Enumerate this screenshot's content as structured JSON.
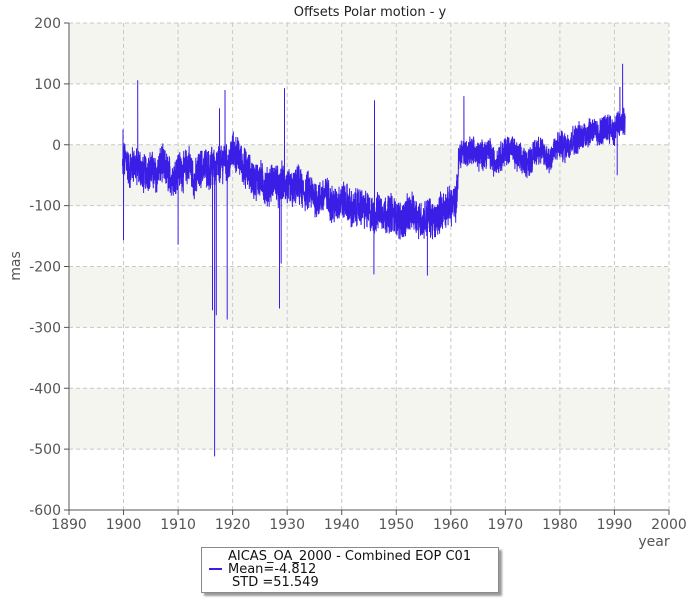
{
  "chart_data": {
    "type": "line",
    "title": "Offsets Polar motion - y",
    "xlabel": "year",
    "ylabel": "mas",
    "xlim": [
      1890,
      2000
    ],
    "ylim": [
      -600,
      200
    ],
    "xticks": [
      1890,
      1900,
      1910,
      1920,
      1930,
      1940,
      1950,
      1960,
      1970,
      1980,
      1990,
      2000
    ],
    "yticks": [
      -600,
      -500,
      -400,
      -300,
      -200,
      -100,
      0,
      100,
      200
    ],
    "grid": true,
    "legend_position": "bottom-center",
    "colors": {
      "series": "#3b1ee6",
      "band": "#f5f5f0",
      "grid": "#c8c8c8"
    },
    "series": [
      {
        "name": "AICAS_OA_2000 - Combined EOP C01",
        "x": [
          1899.8,
          1900,
          1900.5,
          1901,
          1901.5,
          1902,
          1902.5,
          1903,
          1903.5,
          1904,
          1905,
          1906,
          1907,
          1908,
          1909,
          1910,
          1911,
          1912,
          1913,
          1914,
          1915,
          1916,
          1916.4,
          1916.8,
          1917.2,
          1918,
          1918.6,
          1919,
          1920,
          1921,
          1922,
          1923,
          1924,
          1925,
          1926,
          1927,
          1928,
          1928.5,
          1929,
          1930,
          1931,
          1932,
          1933,
          1934,
          1935,
          1936,
          1937,
          1938,
          1939,
          1940,
          1941,
          1942,
          1943,
          1944,
          1945,
          1946,
          1947,
          1948,
          1949,
          1950,
          1951,
          1952,
          1953,
          1954,
          1955,
          1956,
          1957,
          1958,
          1959,
          1960,
          1961,
          1961.5,
          1962,
          1963,
          1964,
          1965,
          1966,
          1967,
          1968,
          1969,
          1970,
          1971,
          1972,
          1973,
          1974,
          1975,
          1976,
          1977,
          1978,
          1979,
          1980,
          1981,
          1982,
          1983,
          1984,
          1985,
          1986,
          1987,
          1988,
          1989,
          1990,
          1990.5,
          1991,
          1991.5,
          1992
        ],
        "mean": [
          -40,
          -30,
          -20,
          -45,
          -35,
          -30,
          -40,
          -35,
          -50,
          -45,
          -40,
          -50,
          -30,
          -45,
          -55,
          -40,
          -45,
          -30,
          -60,
          -40,
          -35,
          -45,
          -20,
          -50,
          -30,
          -35,
          -15,
          -40,
          -10,
          -20,
          -35,
          -45,
          -60,
          -55,
          -70,
          -65,
          -55,
          -80,
          -60,
          -70,
          -75,
          -65,
          -80,
          -75,
          -85,
          -90,
          -80,
          -95,
          -100,
          -90,
          -95,
          -110,
          -100,
          -105,
          -110,
          -120,
          -105,
          -115,
          -110,
          -120,
          -125,
          -115,
          -110,
          -120,
          -125,
          -115,
          -130,
          -110,
          -105,
          -100,
          -95,
          -20,
          -10,
          -15,
          -5,
          -20,
          -15,
          -10,
          -30,
          -20,
          -10,
          -5,
          -20,
          -25,
          -30,
          -20,
          -5,
          -15,
          -25,
          -10,
          0,
          -5,
          5,
          10,
          15,
          20,
          25,
          15,
          25,
          30,
          20,
          35,
          30,
          40,
          35
        ],
        "spikes": [
          {
            "x": 1899.9,
            "y": 25
          },
          {
            "x": 1900.0,
            "y": -157
          },
          {
            "x": 1902.6,
            "y": 106
          },
          {
            "x": 1910.0,
            "y": -164
          },
          {
            "x": 1916.3,
            "y": -272
          },
          {
            "x": 1916.7,
            "y": -512
          },
          {
            "x": 1917.0,
            "y": -280
          },
          {
            "x": 1917.6,
            "y": 60
          },
          {
            "x": 1918.6,
            "y": 90
          },
          {
            "x": 1919.0,
            "y": -287
          },
          {
            "x": 1928.6,
            "y": -269
          },
          {
            "x": 1928.9,
            "y": -195
          },
          {
            "x": 1929.5,
            "y": 93
          },
          {
            "x": 1945.9,
            "y": -213
          },
          {
            "x": 1946.0,
            "y": 73
          },
          {
            "x": 1955.7,
            "y": -215
          },
          {
            "x": 1962.4,
            "y": 80
          },
          {
            "x": 1991.0,
            "y": 95
          },
          {
            "x": 1991.5,
            "y": 133
          },
          {
            "x": 1990.5,
            "y": -50
          }
        ]
      }
    ],
    "legend": {
      "label": "AICAS_OA_2000 - Combined EOP C01",
      "mean": "Mean=-4.812",
      "std": "STD =51.549"
    }
  }
}
